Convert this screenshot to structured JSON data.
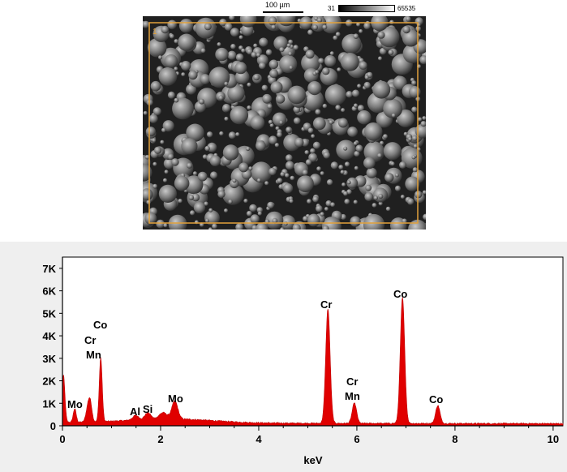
{
  "sem": {
    "scalebar_label": "100 µm",
    "colorbar_min": "31",
    "colorbar_max": "65535",
    "roi_label": "1",
    "roi_color": "#e2a13a"
  },
  "chart_data": {
    "type": "line",
    "title": "",
    "xlabel": "keV",
    "ylabel": "",
    "xlim": [
      0,
      10.2
    ],
    "ylim": [
      0,
      7500
    ],
    "x_ticks": [
      "0",
      "2",
      "4",
      "6",
      "8",
      "10"
    ],
    "y_ticks": [
      "0",
      "1K",
      "2K",
      "3K",
      "4K",
      "5K",
      "6K",
      "7K"
    ],
    "fill_color": "#e00000",
    "grid": false,
    "peaks": [
      {
        "label": "Mo",
        "kev": 0.25,
        "counts": 600
      },
      {
        "label": "Co",
        "kev": 0.78,
        "counts": 2850
      },
      {
        "label": "Al",
        "kev": 1.49,
        "counts": 200
      },
      {
        "label": "Si",
        "kev": 1.74,
        "counts": 300
      },
      {
        "label": "Mo",
        "kev": 2.29,
        "counts": 800
      },
      {
        "label": "Cr",
        "kev": 5.41,
        "counts": 5100
      },
      {
        "label": "Cr",
        "kev": 5.95,
        "counts": 900
      },
      {
        "label": "Co",
        "kev": 6.93,
        "counts": 5600
      },
      {
        "label": "Co",
        "kev": 7.65,
        "counts": 800
      }
    ],
    "annotations": [
      "Mo",
      "Co",
      "Cr",
      "Mn",
      "Al",
      "Si",
      "Mo",
      "Cr",
      "Cr",
      "Mn",
      "Co",
      "Co"
    ]
  }
}
